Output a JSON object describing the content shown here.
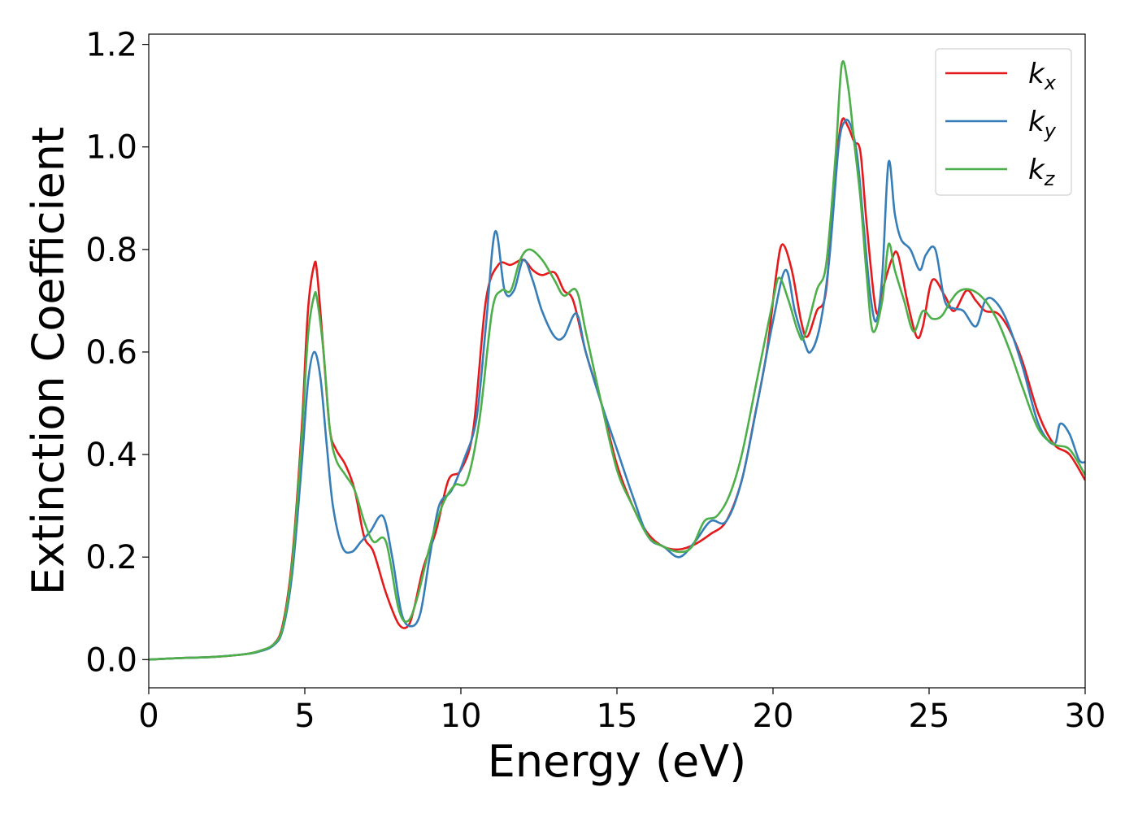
{
  "chart_data": {
    "type": "line",
    "xlabel": "Energy (eV)",
    "ylabel": "Extinction Coefficient",
    "xlim": [
      0,
      30
    ],
    "ylim": [
      -0.055,
      1.22
    ],
    "xticks": [
      0,
      5,
      10,
      15,
      20,
      25,
      30
    ],
    "xtick_labels": [
      "0",
      "5",
      "10",
      "15",
      "20",
      "25",
      "30"
    ],
    "yticks": [
      0.0,
      0.2,
      0.4,
      0.6,
      0.8,
      1.0,
      1.2
    ],
    "ytick_labels": [
      "0.0",
      "0.2",
      "0.4",
      "0.6",
      "0.8",
      "1.0",
      "1.2"
    ],
    "grid": false,
    "legend_position": "top-right",
    "series": [
      {
        "name": "k",
        "subscript": "x",
        "color": "#e41a1c",
        "x": [
          0,
          1,
          2,
          3,
          3.5,
          4,
          4.3,
          4.6,
          4.9,
          5.1,
          5.3,
          5.4,
          5.6,
          5.8,
          6.0,
          6.3,
          6.6,
          6.9,
          7.2,
          7.6,
          8.0,
          8.3,
          8.5,
          8.8,
          9.2,
          9.6,
          10.0,
          10.4,
          10.8,
          11.2,
          11.6,
          12.0,
          12.3,
          12.6,
          13.0,
          13.3,
          13.6,
          14.0,
          14.5,
          15.0,
          15.5,
          16.0,
          16.5,
          17.0,
          17.5,
          18.0,
          18.5,
          19.0,
          19.4,
          19.8,
          20.1,
          20.3,
          20.6,
          20.9,
          21.1,
          21.4,
          21.7,
          22.0,
          22.2,
          22.4,
          22.6,
          22.8,
          23.0,
          23.3,
          23.5,
          23.8,
          24.0,
          24.3,
          24.6,
          24.8,
          25.1,
          25.5,
          25.8,
          26.2,
          26.5,
          26.8,
          27.2,
          27.6,
          28.0,
          28.5,
          29.0,
          29.5,
          30.0
        ],
        "y": [
          0.0,
          0.003,
          0.005,
          0.01,
          0.016,
          0.03,
          0.07,
          0.2,
          0.45,
          0.68,
          0.77,
          0.75,
          0.6,
          0.45,
          0.41,
          0.38,
          0.33,
          0.24,
          0.21,
          0.13,
          0.07,
          0.065,
          0.1,
          0.18,
          0.25,
          0.35,
          0.37,
          0.45,
          0.7,
          0.77,
          0.77,
          0.78,
          0.76,
          0.75,
          0.755,
          0.72,
          0.7,
          0.6,
          0.5,
          0.38,
          0.3,
          0.245,
          0.22,
          0.215,
          0.225,
          0.245,
          0.27,
          0.35,
          0.47,
          0.6,
          0.75,
          0.81,
          0.76,
          0.66,
          0.63,
          0.68,
          0.72,
          0.95,
          1.05,
          1.04,
          1.01,
          0.99,
          0.85,
          0.68,
          0.72,
          0.78,
          0.79,
          0.7,
          0.63,
          0.65,
          0.74,
          0.71,
          0.68,
          0.72,
          0.7,
          0.68,
          0.675,
          0.64,
          0.58,
          0.48,
          0.42,
          0.4,
          0.35
        ]
      },
      {
        "name": "k",
        "subscript": "y",
        "color": "#377eb8",
        "x": [
          0,
          1,
          2,
          3,
          3.5,
          4,
          4.3,
          4.6,
          4.9,
          5.1,
          5.3,
          5.5,
          5.7,
          5.9,
          6.2,
          6.5,
          6.8,
          7.1,
          7.5,
          7.8,
          8.1,
          8.4,
          8.7,
          9.0,
          9.3,
          9.7,
          10.1,
          10.5,
          10.8,
          11.1,
          11.4,
          11.7,
          12.0,
          12.3,
          12.6,
          13.0,
          13.3,
          13.7,
          14.0,
          14.5,
          15.0,
          15.5,
          16.0,
          16.5,
          17.0,
          17.5,
          18.0,
          18.5,
          19.0,
          19.5,
          20.0,
          20.4,
          20.7,
          21.0,
          21.2,
          21.5,
          21.8,
          22.1,
          22.3,
          22.5,
          22.7,
          22.9,
          23.1,
          23.3,
          23.5,
          23.7,
          23.9,
          24.1,
          24.4,
          24.7,
          24.9,
          25.2,
          25.5,
          25.8,
          26.1,
          26.5,
          26.8,
          27.1,
          27.5,
          28.0,
          28.5,
          29.0,
          29.2,
          29.5,
          29.8,
          30.0
        ],
        "y": [
          0.0,
          0.003,
          0.005,
          0.01,
          0.015,
          0.028,
          0.06,
          0.17,
          0.38,
          0.54,
          0.6,
          0.55,
          0.42,
          0.3,
          0.22,
          0.21,
          0.23,
          0.25,
          0.28,
          0.2,
          0.09,
          0.065,
          0.09,
          0.2,
          0.3,
          0.33,
          0.39,
          0.47,
          0.65,
          0.835,
          0.72,
          0.72,
          0.78,
          0.74,
          0.68,
          0.63,
          0.63,
          0.675,
          0.6,
          0.5,
          0.41,
          0.32,
          0.24,
          0.22,
          0.2,
          0.23,
          0.27,
          0.27,
          0.35,
          0.5,
          0.66,
          0.76,
          0.68,
          0.62,
          0.6,
          0.65,
          0.78,
          1.0,
          1.05,
          1.04,
          0.98,
          0.85,
          0.72,
          0.66,
          0.75,
          0.97,
          0.87,
          0.82,
          0.8,
          0.76,
          0.79,
          0.8,
          0.7,
          0.685,
          0.68,
          0.65,
          0.7,
          0.7,
          0.66,
          0.57,
          0.46,
          0.42,
          0.46,
          0.44,
          0.39,
          0.385
        ]
      },
      {
        "name": "k",
        "subscript": "z",
        "color": "#4daf4a",
        "x": [
          0,
          1,
          2,
          3,
          3.5,
          4,
          4.3,
          4.6,
          4.9,
          5.1,
          5.3,
          5.4,
          5.6,
          5.8,
          6.0,
          6.3,
          6.6,
          6.9,
          7.2,
          7.6,
          8.0,
          8.3,
          8.6,
          9.0,
          9.4,
          9.8,
          10.2,
          10.6,
          11.0,
          11.3,
          11.6,
          11.9,
          12.2,
          12.6,
          13.0,
          13.3,
          13.7,
          14.0,
          14.5,
          15.0,
          15.5,
          16.0,
          16.5,
          17.0,
          17.4,
          17.8,
          18.2,
          18.6,
          19.0,
          19.5,
          20.0,
          20.2,
          20.5,
          20.8,
          21.0,
          21.4,
          21.7,
          22.0,
          22.2,
          22.4,
          22.6,
          22.8,
          23.0,
          23.2,
          23.5,
          23.7,
          23.9,
          24.2,
          24.5,
          24.8,
          25.1,
          25.4,
          25.7,
          26.0,
          26.4,
          26.8,
          27.2,
          27.6,
          28.0,
          28.5,
          29.0,
          29.5,
          30.0
        ],
        "y": [
          0.0,
          0.003,
          0.005,
          0.01,
          0.016,
          0.03,
          0.065,
          0.19,
          0.43,
          0.63,
          0.71,
          0.7,
          0.6,
          0.45,
          0.39,
          0.36,
          0.33,
          0.27,
          0.23,
          0.23,
          0.1,
          0.075,
          0.12,
          0.22,
          0.3,
          0.34,
          0.35,
          0.47,
          0.68,
          0.72,
          0.72,
          0.78,
          0.8,
          0.78,
          0.74,
          0.71,
          0.72,
          0.64,
          0.5,
          0.37,
          0.3,
          0.24,
          0.22,
          0.21,
          0.22,
          0.27,
          0.28,
          0.32,
          0.4,
          0.55,
          0.7,
          0.745,
          0.7,
          0.64,
          0.63,
          0.72,
          0.77,
          0.98,
          1.16,
          1.12,
          1.01,
          0.9,
          0.75,
          0.64,
          0.7,
          0.81,
          0.76,
          0.7,
          0.64,
          0.68,
          0.665,
          0.67,
          0.7,
          0.72,
          0.72,
          0.7,
          0.66,
          0.6,
          0.53,
          0.45,
          0.42,
          0.41,
          0.36
        ]
      }
    ]
  }
}
